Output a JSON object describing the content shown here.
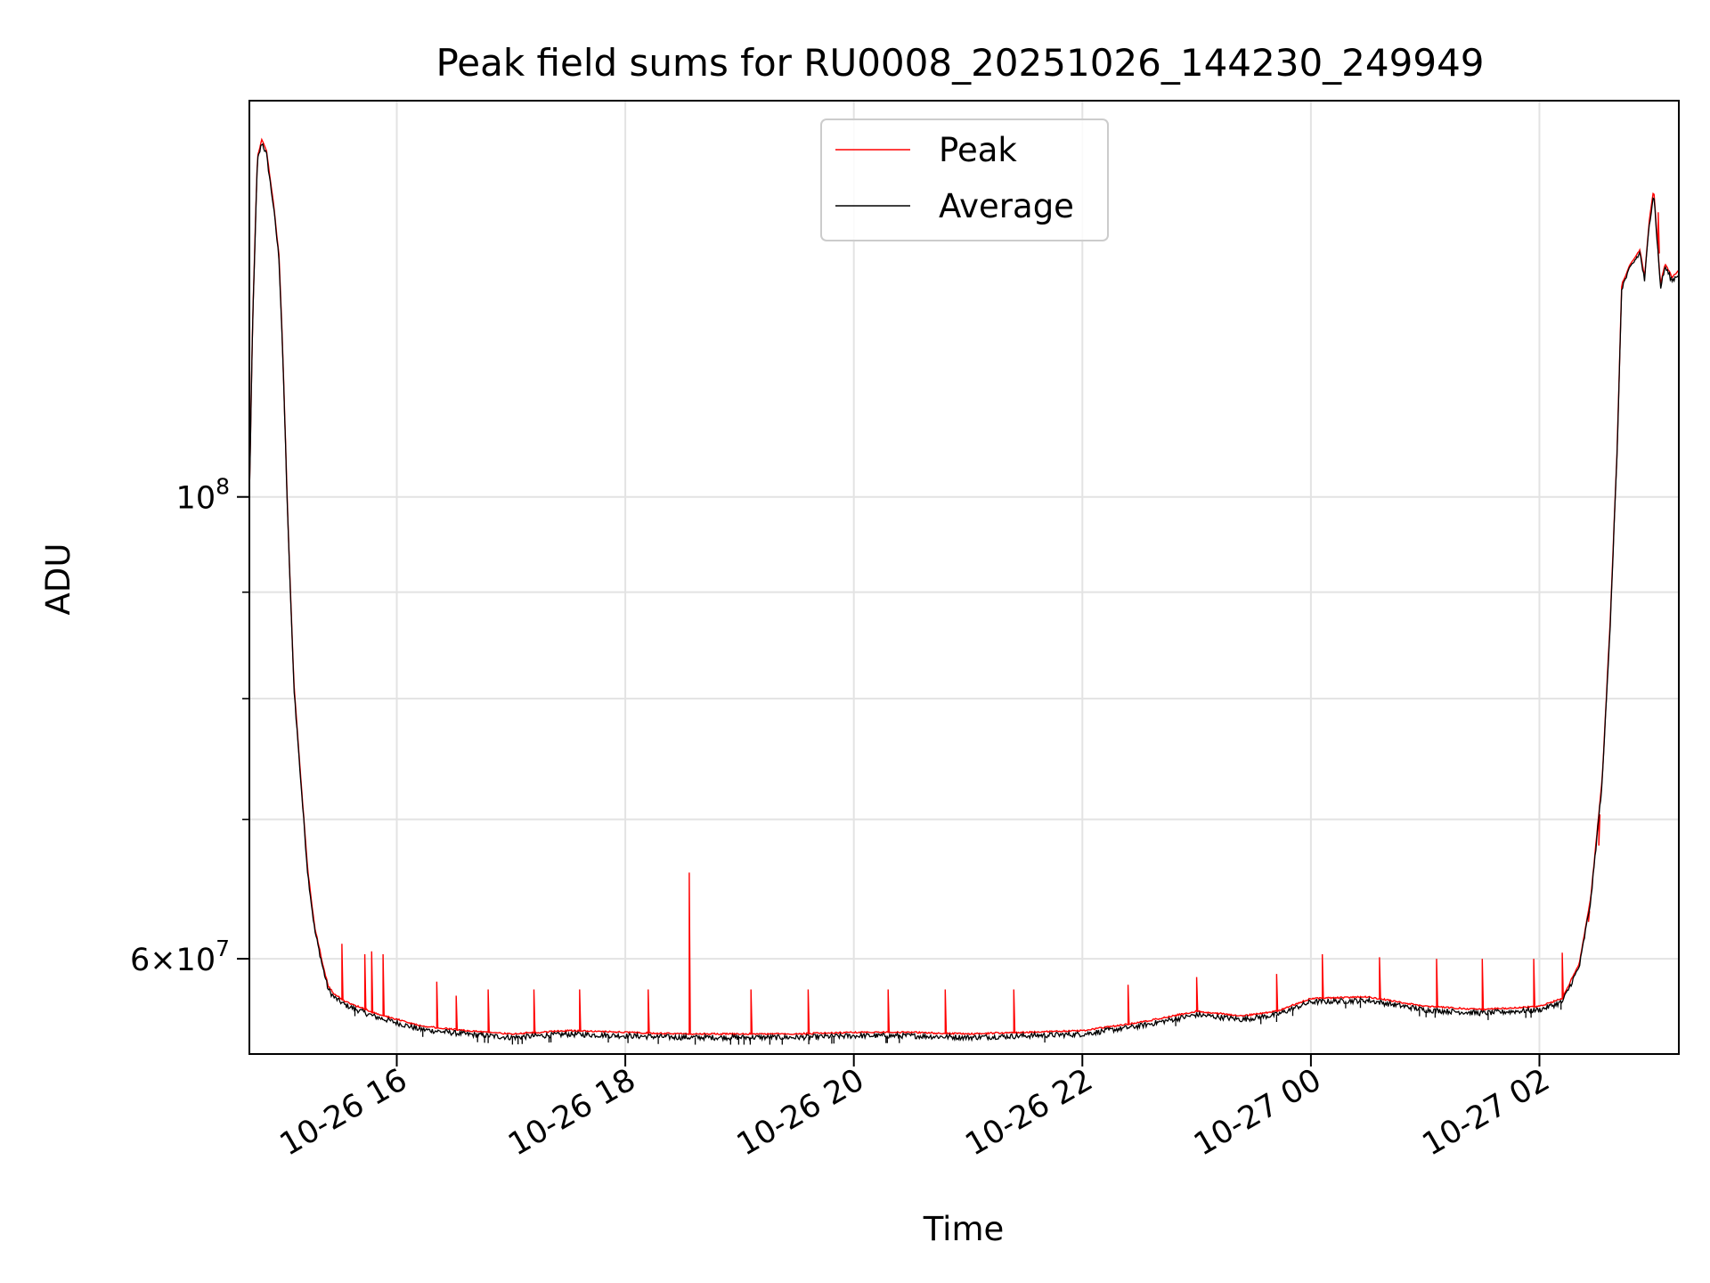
{
  "chart_data": {
    "type": "line",
    "title": "Peak field sums for RU0008_20251026_144230_249949",
    "xlabel": "Time",
    "ylabel": "ADU",
    "yscale": "log",
    "ylim": [
      54000000,
      155000000
    ],
    "xlim_hours": [
      14.71,
      27.22
    ],
    "x_ticks": [
      {
        "value": 16,
        "label": "10-26 16"
      },
      {
        "value": 18,
        "label": "10-26 18"
      },
      {
        "value": 20,
        "label": "10-26 20"
      },
      {
        "value": 22,
        "label": "10-26 22"
      },
      {
        "value": 24,
        "label": "10-27 00"
      },
      {
        "value": 26,
        "label": "10-27 02"
      }
    ],
    "y_ticks_major": [
      {
        "value": 60000000,
        "base": "6",
        "mult": "×",
        "exp_base": "10",
        "exp": "7"
      },
      {
        "value": 100000000,
        "base": "",
        "mult": "",
        "exp_base": "10",
        "exp": "8"
      }
    ],
    "y_ticks_minor": [
      70000000,
      80000000,
      90000000
    ],
    "grid": true,
    "legend_position": "top-center",
    "legend": [
      {
        "label": "Peak",
        "color": "#ff0000"
      },
      {
        "label": "Average",
        "color": "#000000"
      }
    ],
    "series": [
      {
        "name": "Average",
        "color": "#000000",
        "x": [
          14.71,
          14.74,
          14.78,
          14.82,
          14.86,
          14.92,
          14.97,
          15.0,
          15.05,
          15.1,
          15.16,
          15.22,
          15.28,
          15.35,
          15.4,
          15.45,
          15.55,
          15.8,
          16.2,
          16.6,
          17.0,
          17.5,
          18.0,
          18.5,
          19.0,
          19.5,
          20.0,
          20.5,
          21.0,
          21.5,
          22.0,
          22.5,
          23.0,
          23.4,
          23.7,
          24.0,
          24.5,
          25.0,
          25.5,
          26.0,
          26.2,
          26.35,
          26.45,
          26.55,
          26.62,
          26.68,
          26.72,
          26.8,
          26.88,
          26.92,
          26.96,
          27.0,
          27.06,
          27.1,
          27.16,
          27.22
        ],
        "y": [
          100000000,
          122000000,
          145000000,
          148000000,
          146000000,
          138000000,
          130000000,
          118000000,
          96000000,
          81000000,
          73000000,
          66000000,
          62000000,
          59500000,
          58000000,
          57500000,
          57000000,
          56300000,
          55500000,
          55200000,
          55000000,
          55200000,
          55100000,
          55000000,
          55000000,
          55000000,
          55100000,
          55100000,
          55000000,
          55100000,
          55200000,
          55700000,
          56400000,
          56100000,
          56400000,
          57200000,
          57300000,
          56700000,
          56500000,
          56700000,
          57200000,
          59500000,
          64000000,
          73000000,
          87000000,
          105000000,
          126000000,
          129000000,
          131000000,
          127000000,
          135000000,
          140000000,
          126000000,
          129000000,
          127000000,
          128000000
        ]
      },
      {
        "name": "Peak",
        "color": "#ff0000",
        "offset_ratio": 1.003,
        "spikes": [
          {
            "x": 15.52,
            "y": 61000000
          },
          {
            "x": 15.72,
            "y": 60300000
          },
          {
            "x": 15.78,
            "y": 60500000
          },
          {
            "x": 15.88,
            "y": 60300000
          },
          {
            "x": 16.35,
            "y": 58500000
          },
          {
            "x": 16.52,
            "y": 57600000
          },
          {
            "x": 16.8,
            "y": 58000000
          },
          {
            "x": 17.2,
            "y": 58000000
          },
          {
            "x": 17.6,
            "y": 58000000
          },
          {
            "x": 18.2,
            "y": 58000000
          },
          {
            "x": 18.56,
            "y": 66000000
          },
          {
            "x": 19.1,
            "y": 58000000
          },
          {
            "x": 19.6,
            "y": 58000000
          },
          {
            "x": 20.3,
            "y": 58000000
          },
          {
            "x": 20.8,
            "y": 58000000
          },
          {
            "x": 21.4,
            "y": 58000000
          },
          {
            "x": 22.4,
            "y": 58300000
          },
          {
            "x": 23.0,
            "y": 58800000
          },
          {
            "x": 23.7,
            "y": 59000000
          },
          {
            "x": 24.1,
            "y": 60300000
          },
          {
            "x": 24.6,
            "y": 60100000
          },
          {
            "x": 25.1,
            "y": 60000000
          },
          {
            "x": 25.5,
            "y": 60000000
          },
          {
            "x": 25.95,
            "y": 60000000
          },
          {
            "x": 26.2,
            "y": 60400000
          },
          {
            "x": 26.43,
            "y": 62500000
          },
          {
            "x": 26.52,
            "y": 68000000
          },
          {
            "x": 27.04,
            "y": 137000000
          }
        ]
      }
    ]
  }
}
